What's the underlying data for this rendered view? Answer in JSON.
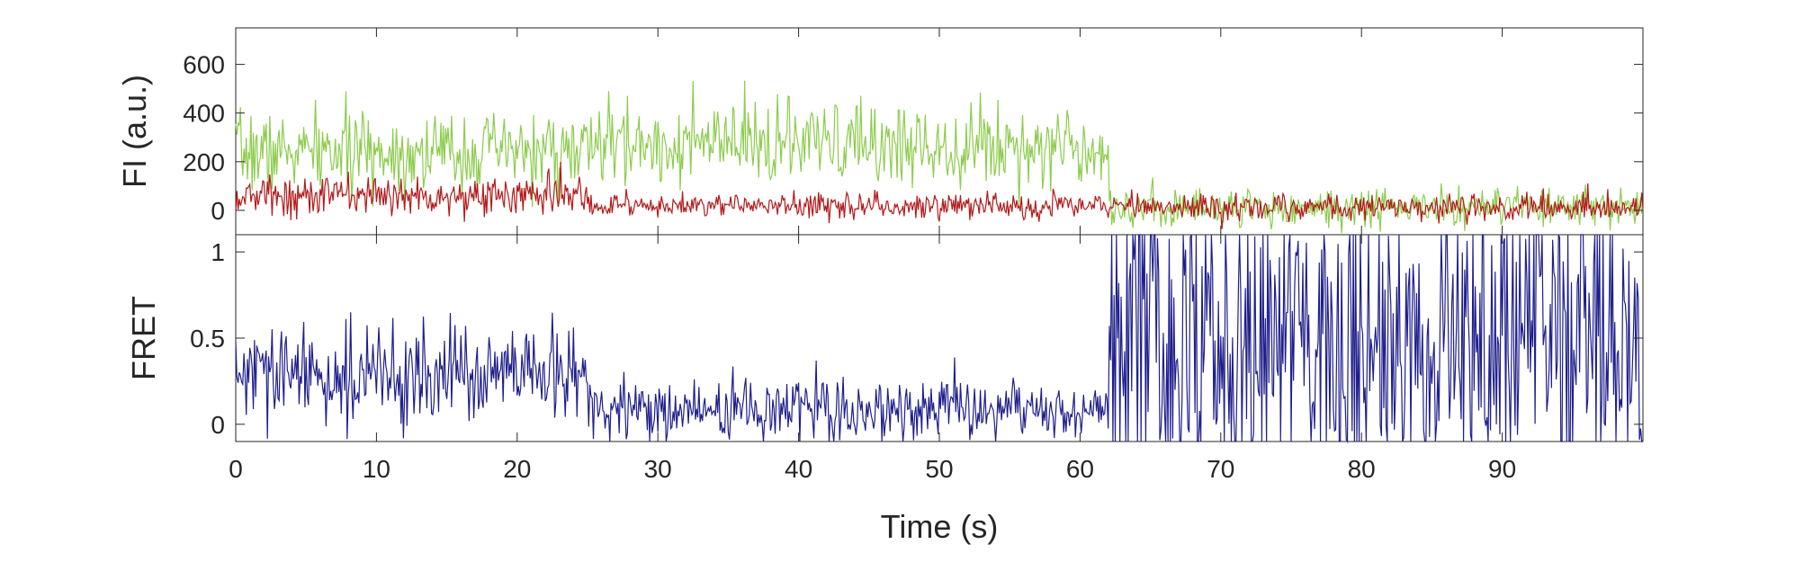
{
  "chart_data": [
    {
      "type": "line",
      "panel": "top",
      "ylabel": "FI (a.u.)",
      "xlabel": "",
      "xlim": [
        0,
        100
      ],
      "ylim": [
        -100,
        750
      ],
      "yticks": [
        0,
        200,
        400,
        600
      ],
      "ytick_labels": [
        "0",
        "200",
        "400",
        "600"
      ],
      "xticks": [
        0,
        10,
        20,
        30,
        40,
        50,
        60,
        70,
        80,
        90
      ],
      "show_x_tick_labels": false,
      "grid": false,
      "series": [
        {
          "color": "#8ccc4c",
          "segments": [
            {
              "x_start": 0,
              "x_end": 25,
              "mean": 240,
              "noise": 80
            },
            {
              "x_start": 25,
              "x_end": 62,
              "mean": 270,
              "noise": 85
            },
            {
              "x_start": 62,
              "x_end": 100,
              "mean": 10,
              "noise": 40
            }
          ],
          "seed": 7
        },
        {
          "color": "#b21a1a",
          "segments": [
            {
              "x_start": 0,
              "x_end": 25,
              "mean": 60,
              "noise": 42
            },
            {
              "x_start": 25,
              "x_end": 62,
              "mean": 20,
              "noise": 25
            },
            {
              "x_start": 62,
              "x_end": 100,
              "mean": 15,
              "noise": 28
            }
          ],
          "seed": 13
        }
      ]
    },
    {
      "type": "line",
      "panel": "bottom",
      "ylabel": "FRET",
      "xlabel": "Time (s)",
      "xlim": [
        0,
        100
      ],
      "ylim": [
        -0.1,
        1.1
      ],
      "yticks": [
        0,
        0.5,
        1
      ],
      "ytick_labels": [
        "0",
        "0.5",
        "1"
      ],
      "xticks": [
        0,
        10,
        20,
        30,
        40,
        50,
        60,
        70,
        80,
        90
      ],
      "xtick_labels": [
        "0",
        "10",
        "20",
        "30",
        "40",
        "50",
        "60",
        "70",
        "80",
        "90"
      ],
      "grid": false,
      "series": [
        {
          "color": "#1f1f8c",
          "segments": [
            {
              "x_start": 0,
              "x_end": 25,
              "mean": 0.28,
              "noise": 0.14
            },
            {
              "x_start": 25,
              "x_end": 62,
              "mean": 0.08,
              "noise": 0.09
            },
            {
              "x_start": 62,
              "x_end": 100,
              "mean": 0.5,
              "noise": 0.55
            }
          ],
          "seed": 29
        }
      ]
    }
  ]
}
